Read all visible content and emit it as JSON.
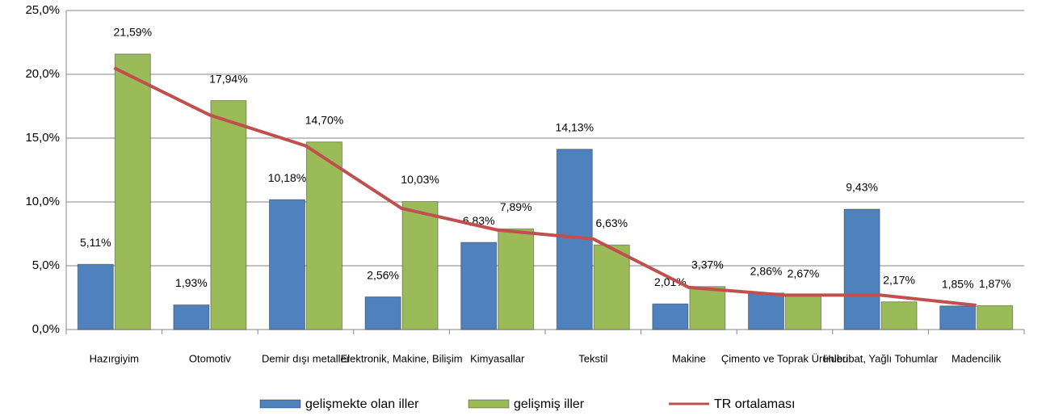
{
  "chart_data": {
    "type": "bar",
    "categories": [
      "Hazırgiyim",
      "Otomotiv",
      "Demir dışı metaller",
      "Elektronik, Makine, Bilişim",
      "Kimyasallar",
      "Tekstil",
      "Makine",
      "Çimento ve Toprak Ürünleri",
      "Hububat, Yağlı Tohumlar",
      "Madencilik"
    ],
    "series": [
      {
        "name": "gelişmekte olan iller",
        "color": "#4f81bd",
        "values": [
          5.11,
          1.93,
          10.18,
          2.56,
          6.83,
          14.13,
          2.01,
          2.86,
          9.43,
          1.85
        ],
        "value_labels": [
          "5,11%",
          "1,93%",
          "10,18%",
          "2,56%",
          "6,83%",
          "14,13%",
          "2,01%",
          "2,86%",
          "9,43%",
          "1,85%"
        ]
      },
      {
        "name": "gelişmiş iller",
        "color": "#9bbb59",
        "values": [
          21.59,
          17.94,
          14.7,
          10.03,
          7.89,
          6.63,
          3.37,
          2.67,
          2.17,
          1.87
        ],
        "value_labels": [
          "21,59%",
          "17,94%",
          "14,70%",
          "10,03%",
          "7,89%",
          "6,63%",
          "3,37%",
          "2,67%",
          "2,17%",
          "1,87%"
        ]
      },
      {
        "name": "TR ortalaması",
        "color": "#c0504d",
        "type": "line",
        "values": [
          20.5,
          16.8,
          14.4,
          9.5,
          7.8,
          7.1,
          3.3,
          2.7,
          2.7,
          1.9
        ]
      }
    ],
    "ylim": [
      0,
      25
    ],
    "yticks": [
      {
        "value": 0,
        "label": "0,0%"
      },
      {
        "value": 5,
        "label": "5,0%"
      },
      {
        "value": 10,
        "label": "10,0%"
      },
      {
        "value": 15,
        "label": "15,0%"
      },
      {
        "value": 20,
        "label": "20,0%"
      },
      {
        "value": 25,
        "label": "25,0%"
      }
    ],
    "grid": true
  }
}
